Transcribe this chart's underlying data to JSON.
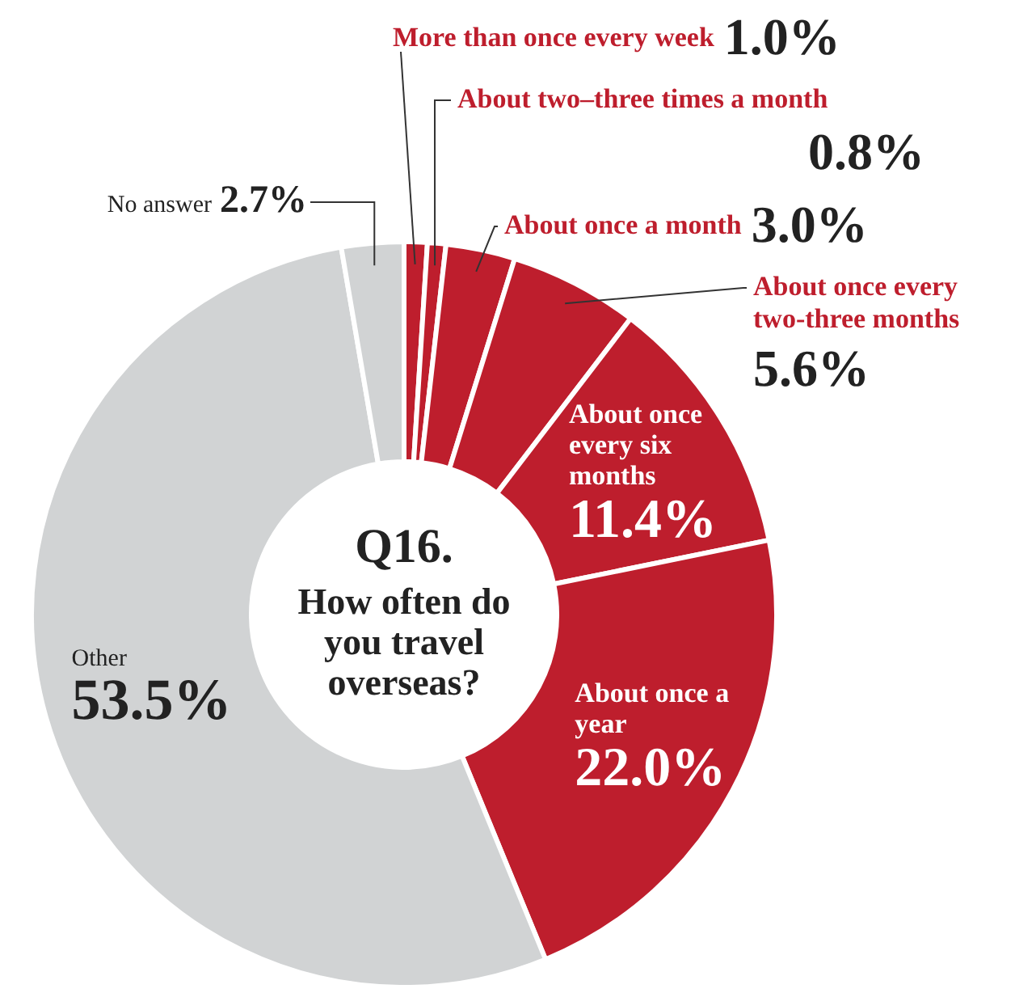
{
  "chart_data": {
    "type": "donut",
    "title": "Q16.",
    "subtitle": "How often do you travel overseas?",
    "categories": [
      "More than once every week",
      "About two–three times a month",
      "About once a month",
      "About once every two-three months",
      "About once every six months",
      "About once a year",
      "Other",
      "No answer"
    ],
    "values": [
      1.0,
      0.8,
      3.0,
      5.6,
      11.4,
      22.0,
      53.5,
      2.7
    ],
    "value_labels": [
      "1.0%",
      "0.8%",
      "3.0%",
      "5.6%",
      "11.4%",
      "22.0%",
      "53.5%",
      "2.7%"
    ],
    "colors": [
      "#be1e2d",
      "#be1e2d",
      "#be1e2d",
      "#be1e2d",
      "#be1e2d",
      "#be1e2d",
      "#d1d3d4",
      "#d1d3d4"
    ]
  }
}
